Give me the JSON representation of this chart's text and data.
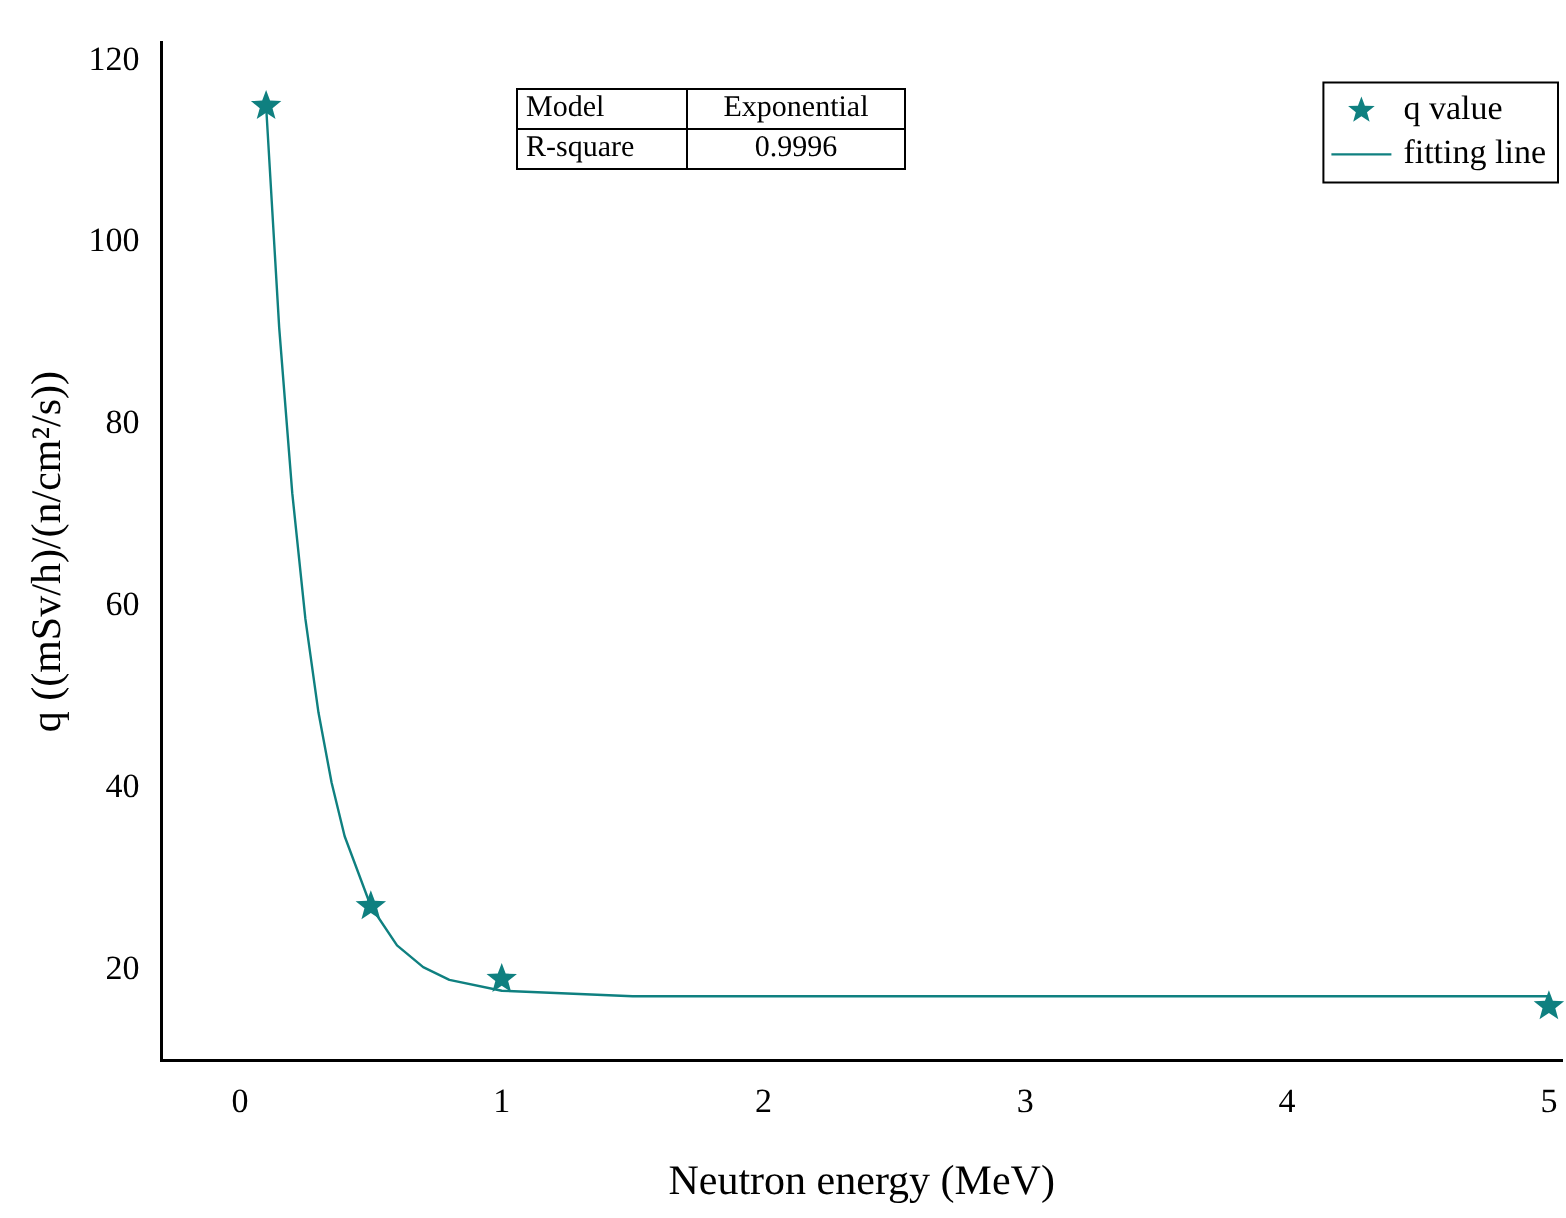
{
  "chart_data": {
    "type": "scatter",
    "xlabel": "Neutron energy (MeV)",
    "ylabel": "q ((mSv/h)/(n/cm²/s))",
    "xlim": [
      -0.3,
      5.05
    ],
    "xticks": [
      0,
      1,
      2,
      3,
      4,
      5
    ],
    "ylim": [
      10,
      122
    ],
    "yticks": [
      20,
      40,
      60,
      80,
      100,
      120
    ],
    "grid": false,
    "legend": "top right",
    "annotations": [
      "Model",
      "Exponential",
      "R-square",
      "0.9996"
    ],
    "series": [
      {
        "name": "q value",
        "type": "scatter",
        "color": "#0f8080",
        "marker": "star",
        "x": [
          0.1,
          0.5,
          1,
          5
        ],
        "values": [
          115,
          27,
          19,
          16
        ]
      },
      {
        "name": "fitting line",
        "type": "line",
        "color": "#0f8080",
        "marker": "none",
        "line_style": "solid",
        "x": [
          0.1,
          0.15,
          0.2,
          0.25,
          0.3,
          0.35,
          0.4,
          0.5,
          0.6,
          0.7,
          0.8,
          1,
          1.5,
          2,
          3,
          4,
          5
        ],
        "values": [
          115,
          90.6,
          72.4,
          58.6,
          48.3,
          40.6,
          34.7,
          27,
          22.7,
          20.3,
          18.9,
          17.7,
          17.1,
          17.1,
          17.1,
          17.1,
          17.1
        ]
      }
    ]
  }
}
